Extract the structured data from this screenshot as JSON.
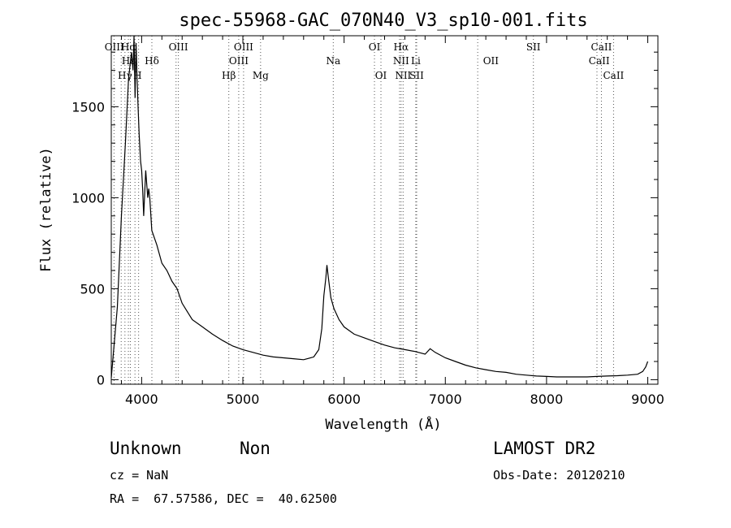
{
  "chart_data": {
    "type": "line",
    "title": "spec-55968-GAC_070N40_V3_sp10-001.fits",
    "xlabel": "Wavelength (Å)",
    "ylabel": "Flux (relative)",
    "xlim": [
      3700,
      9100
    ],
    "ylim": [
      -25,
      1890
    ],
    "x_ticks": [
      4000,
      5000,
      6000,
      7000,
      8000,
      9000
    ],
    "y_ticks": [
      0,
      500,
      1000,
      1500
    ],
    "grid": false,
    "series": [
      {
        "x": [
          3700,
          3760,
          3800,
          3840,
          3870,
          3900,
          3915,
          3925,
          3935,
          3945,
          3955,
          3965,
          3975,
          3990,
          4000,
          4010,
          4020,
          4040,
          4060,
          4070,
          4080,
          4100,
          4150,
          4200,
          4250,
          4300,
          4350,
          4400,
          4500,
          4600,
          4700,
          4800,
          4900,
          5000,
          5100,
          5200,
          5300,
          5400,
          5500,
          5600,
          5700,
          5750,
          5780,
          5800,
          5820,
          5830,
          5845,
          5870,
          5900,
          5950,
          6000,
          6100,
          6200,
          6300,
          6400,
          6500,
          6600,
          6700,
          6800,
          6850,
          6900,
          7000,
          7100,
          7200,
          7300,
          7400,
          7500,
          7600,
          7700,
          7800,
          7900,
          8000,
          8100,
          8200,
          8300,
          8400,
          8500,
          8600,
          8700,
          8800,
          8900,
          8950,
          8980,
          9000
        ],
        "y": [
          10,
          400,
          900,
          1300,
          1650,
          1800,
          1700,
          1890,
          1550,
          1850,
          1650,
          1500,
          1350,
          1200,
          1150,
          1050,
          900,
          1150,
          1000,
          1050,
          1000,
          820,
          740,
          640,
          600,
          540,
          500,
          420,
          330,
          290,
          250,
          215,
          185,
          165,
          150,
          135,
          125,
          120,
          115,
          110,
          125,
          165,
          280,
          460,
          560,
          630,
          560,
          450,
          390,
          330,
          290,
          250,
          230,
          210,
          190,
          175,
          165,
          155,
          140,
          170,
          150,
          120,
          100,
          80,
          65,
          55,
          45,
          40,
          30,
          25,
          20,
          18,
          15,
          15,
          15,
          15,
          18,
          20,
          22,
          25,
          30,
          45,
          70,
          100
        ]
      }
    ],
    "annotations": [
      "OIII",
      "Hα",
      "Hε",
      "Hγ",
      "H",
      "Hδ",
      "OIII",
      "OIII",
      "OIII",
      "Hβ",
      "Mg",
      "Na",
      "OI",
      "OI",
      "Hα",
      "NII",
      "NII",
      "Li",
      "SII",
      "OII",
      "SII",
      "CaII",
      "CaII",
      "CaII"
    ]
  },
  "info": {
    "object_class": "Unknown",
    "subclass": "Non",
    "survey": "LAMOST DR2",
    "cz": "cz = NaN",
    "obs_date": "Obs-Date: 20120210",
    "coords": "RA =  67.57586, DEC =  40.62500"
  }
}
